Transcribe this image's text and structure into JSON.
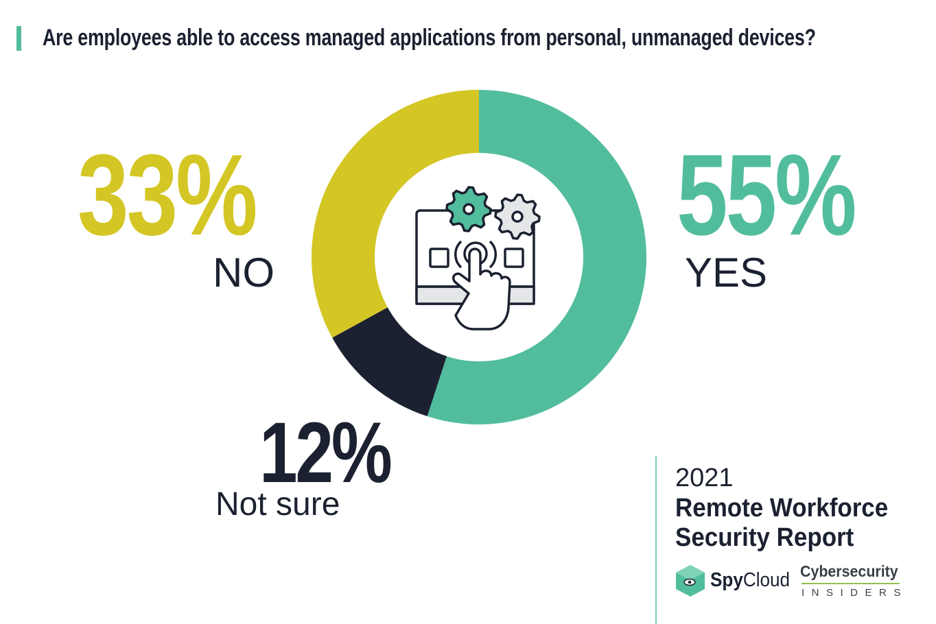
{
  "title": "Are employees able to access managed applications from personal, unmanaged devices?",
  "chart_data": {
    "type": "pie",
    "variant": "donut",
    "title": "Are employees able to access managed applications from personal, unmanaged devices?",
    "categories": [
      "YES",
      "Not sure",
      "NO"
    ],
    "values": [
      55,
      12,
      33
    ],
    "value_labels": [
      "55%",
      "12%",
      "33%"
    ],
    "colors": [
      "#52bd9d",
      "#1b2130",
      "#d4c624"
    ],
    "start": "top",
    "direction": "clockwise",
    "center_icon": "touchscreen-gears-icon"
  },
  "report": {
    "year": "2021",
    "title_line1": "Remote Workforce",
    "title_line2": "Security Report"
  },
  "logos": {
    "spycloud_a": "Spy",
    "spycloud_b": "Cloud",
    "ci_top": "Cybersecurity",
    "ci_bottom": "INSIDERS"
  }
}
